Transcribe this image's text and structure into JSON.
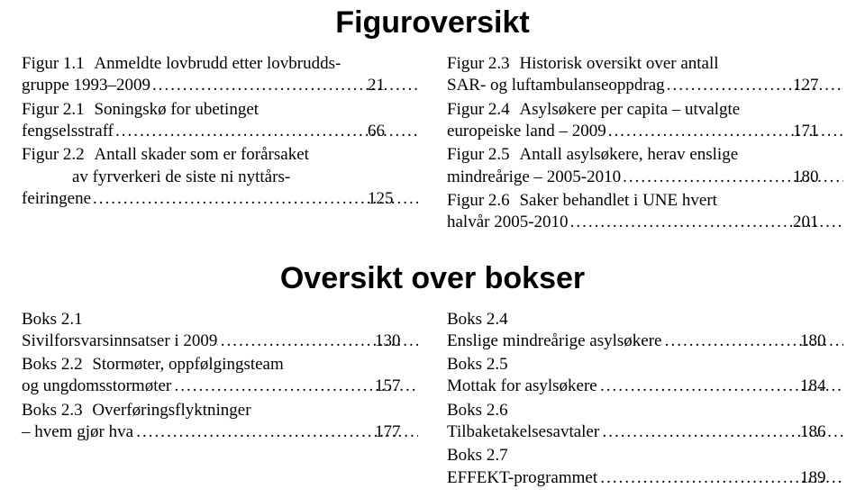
{
  "typography": {
    "heading_font": "sans-serif",
    "heading_weight": 700,
    "heading_size_pt": 26,
    "body_font": "serif",
    "body_size_pt": 14,
    "line_height": 1.28,
    "text_color": "#000000",
    "background_color": "#ffffff",
    "leader_char": "."
  },
  "section1": {
    "heading": "Figuroversikt",
    "left": [
      {
        "label": "Figur 1.1",
        "lines": [
          "Anmeldte lovbrudd etter lovbrudds-",
          "gruppe 1993–2009"
        ],
        "page": "21"
      },
      {
        "label": "Figur 2.1",
        "lines": [
          "Soningskø for ubetinget",
          "fengselsstraff"
        ],
        "page": "66"
      },
      {
        "label": "Figur 2.2",
        "lines": [
          "Antall skader som er forårsaket",
          "av fyrverkeri de siste ni nyttårs-",
          "feiringene"
        ],
        "page": "125"
      }
    ],
    "right": [
      {
        "label": "Figur 2.3",
        "lines": [
          "Historisk oversikt over antall",
          "SAR- og luftambulanseoppdrag"
        ],
        "page": "127"
      },
      {
        "label": "Figur 2.4",
        "lines": [
          "Asylsøkere per capita – utvalgte",
          "europeiske land – 2009"
        ],
        "page": "171"
      },
      {
        "label": "Figur 2.5",
        "lines": [
          "Antall asylsøkere, herav enslige",
          "mindreårige – 2005-2010"
        ],
        "page": "180"
      },
      {
        "label": "Figur 2.6",
        "lines": [
          "Saker behandlet i UNE hvert",
          "halvår 2005-2010"
        ],
        "page": "201"
      }
    ]
  },
  "section2": {
    "heading": "Oversikt over bokser",
    "left": [
      {
        "label": "Boks 2.1",
        "lines": [
          "Sivilforsvarsinnsatser i 2009"
        ],
        "page": "130"
      },
      {
        "label": "Boks 2.2",
        "lines": [
          "Stormøter, oppfølgingsteam",
          "og ungdomsstormøter"
        ],
        "page": "157"
      },
      {
        "label": "Boks 2.3",
        "lines": [
          "Overføringsflyktninger",
          "– hvem gjør hva"
        ],
        "page": "177"
      }
    ],
    "right": [
      {
        "label": "Boks 2.4",
        "lines": [
          "Enslige mindreårige asylsøkere"
        ],
        "page": "180"
      },
      {
        "label": "Boks 2.5",
        "lines": [
          "Mottak for asylsøkere"
        ],
        "page": "184"
      },
      {
        "label": "Boks 2.6",
        "lines": [
          "Tilbaketakelsesavtaler"
        ],
        "page": "186"
      },
      {
        "label": "Boks 2.7",
        "lines": [
          "EFFEKT-programmet"
        ],
        "page": "189"
      }
    ]
  }
}
